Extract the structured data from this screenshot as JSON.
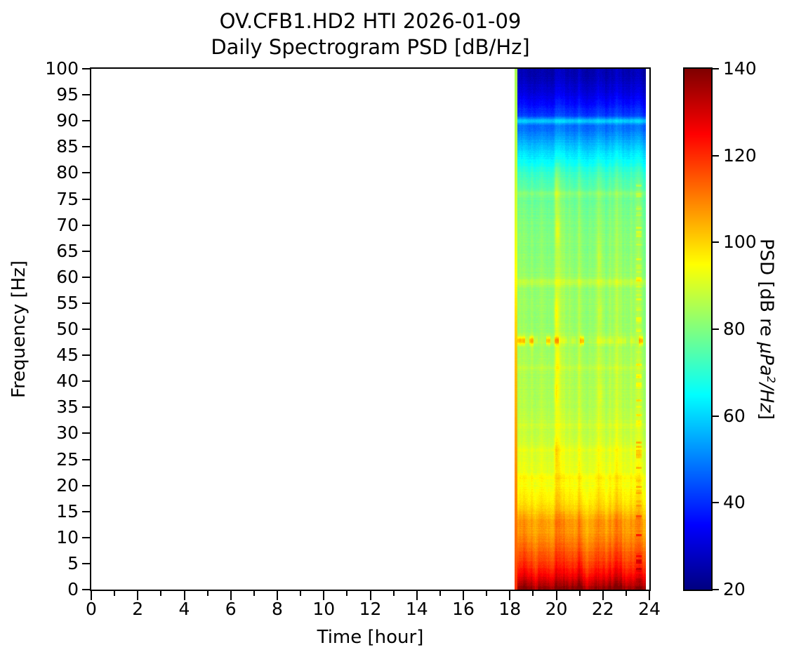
{
  "figure": {
    "title_line1": "OV.CFB1.HD2 HTI 2026-01-09",
    "title_line2": "Daily Spectrogram PSD [dB/Hz]"
  },
  "axes": {
    "xlabel": "Time [hour]",
    "ylabel": "Frequency [Hz]",
    "xlim": [
      0,
      24
    ],
    "ylim": [
      0,
      100
    ],
    "x_major_ticks": [
      0,
      2,
      4,
      6,
      8,
      10,
      12,
      14,
      16,
      18,
      20,
      22,
      24
    ],
    "x_minor_ticks": [
      1,
      3,
      5,
      7,
      9,
      11,
      13,
      15,
      17,
      19,
      21,
      23
    ],
    "y_major_ticks": [
      0,
      5,
      10,
      15,
      20,
      25,
      30,
      35,
      40,
      45,
      50,
      55,
      60,
      65,
      70,
      75,
      80,
      85,
      90,
      95,
      100
    ],
    "grid": false
  },
  "colorbar": {
    "label": "PSD [dB re μPa²/Hz]",
    "label_prefix": "PSD [dB re ",
    "label_unit_main": "μPa",
    "label_unit_sup": "2",
    "label_unit_rest": "/Hz",
    "label_close": "]",
    "ticks": [
      20,
      40,
      60,
      80,
      100,
      120,
      140
    ],
    "clim": [
      20,
      140
    ],
    "colormap": "jet"
  },
  "colors": {
    "text": "#000000",
    "spine": "#000000",
    "background": "#ffffff",
    "no_data": "#ffffff"
  },
  "chart_data": {
    "type": "heatmap",
    "subtype": "spectrogram",
    "title": "OV.CFB1.HD2 HTI 2026-01-09 Daily Spectrogram PSD [dB/Hz]",
    "xlabel": "Time [hour]",
    "ylabel": "Frequency [Hz]",
    "xlim": [
      0,
      24
    ],
    "ylim": [
      0,
      100
    ],
    "clim_db": [
      20,
      140
    ],
    "colormap": "jet",
    "coverage": {
      "start_hour": 18.2,
      "leading_column_end_hour": 18.33,
      "end_hour": 23.85
    },
    "base_profile": {
      "freq_hz": [
        0,
        1,
        2,
        3,
        4,
        5,
        6,
        8,
        10,
        12,
        14,
        16,
        18,
        20,
        23,
        26,
        30,
        35,
        40,
        45,
        50,
        55,
        60,
        65,
        70,
        73,
        76,
        78,
        80,
        82,
        84,
        86,
        88,
        90,
        92,
        94,
        96,
        98,
        100
      ],
      "psd_db": [
        138,
        133,
        128,
        124,
        121,
        118,
        116,
        112,
        108,
        105,
        102,
        99,
        96,
        94,
        92,
        90.5,
        88,
        86,
        85,
        84,
        83,
        82.5,
        82,
        81,
        80,
        78.5,
        76.5,
        74,
        71,
        66,
        61,
        55,
        49,
        44.5,
        39,
        34,
        30,
        27,
        25
      ]
    },
    "leading_column_profile": {
      "freq_hz": [
        0,
        8,
        15,
        25,
        35,
        45,
        52,
        60,
        70,
        80,
        90,
        100
      ],
      "psd_db": [
        120,
        113,
        110,
        107,
        104,
        102,
        99,
        95,
        91,
        88,
        86,
        85
      ]
    },
    "horizontal_lines": [
      {
        "freq_hz": 90.0,
        "sigma_hz": 0.45,
        "boost_db": 14,
        "intermittent": false
      },
      {
        "freq_hz": 76.0,
        "sigma_hz": 0.5,
        "boost_db": 4,
        "intermittent": false
      },
      {
        "freq_hz": 59.0,
        "sigma_hz": 0.55,
        "boost_db": 5,
        "intermittent": false
      },
      {
        "freq_hz": 47.8,
        "sigma_hz": 0.55,
        "boost_db": 6,
        "intermittent": true
      },
      {
        "freq_hz": 42.5,
        "sigma_hz": 0.4,
        "boost_db": 2.5,
        "intermittent": false
      },
      {
        "freq_hz": 31.5,
        "sigma_hz": 0.4,
        "boost_db": 2,
        "intermittent": false
      },
      {
        "freq_hz": 26.8,
        "sigma_hz": 0.4,
        "boost_db": 2,
        "intermittent": false
      },
      {
        "freq_hz": 21.5,
        "sigma_hz": 0.5,
        "boost_db": 2,
        "intermittent": false
      },
      {
        "freq_hz": 13.2,
        "sigma_hz": 1.1,
        "boost_db": 3,
        "intermittent": false
      }
    ],
    "events": [
      {
        "hour": 18.95,
        "sigma_hour": 0.05,
        "boost_db": 3,
        "speckle_db": 0
      },
      {
        "hour": 19.35,
        "sigma_hour": 0.04,
        "boost_db": 2,
        "speckle_db": 0
      },
      {
        "hour": 20.05,
        "sigma_hour": 0.09,
        "boost_db": 6,
        "speckle_db": 0
      },
      {
        "hour": 20.55,
        "sigma_hour": 0.04,
        "boost_db": 2,
        "speckle_db": 0
      },
      {
        "hour": 21.0,
        "sigma_hour": 0.05,
        "boost_db": 2.5,
        "speckle_db": 0
      },
      {
        "hour": 21.45,
        "sigma_hour": 0.05,
        "boost_db": 2,
        "speckle_db": 0
      },
      {
        "hour": 21.85,
        "sigma_hour": 0.07,
        "boost_db": 4,
        "speckle_db": 0
      },
      {
        "hour": 22.3,
        "sigma_hour": 0.04,
        "boost_db": 2,
        "speckle_db": 0
      },
      {
        "hour": 22.6,
        "sigma_hour": 0.06,
        "boost_db": 3,
        "speckle_db": 0
      },
      {
        "hour": 23.2,
        "sigma_hour": 0.04,
        "boost_db": 2,
        "speckle_db": 0
      },
      {
        "hour": 23.55,
        "sigma_hour": 0.08,
        "boost_db": 3,
        "speckle_db": 8
      }
    ],
    "blobs": [
      {
        "hour": 20.0,
        "freq_hz": 77.0,
        "sigma_hz": 3.0,
        "boost_db": 5
      },
      {
        "hour": 20.05,
        "freq_hz": 69.0,
        "sigma_hz": 2.0,
        "boost_db": 6
      },
      {
        "hour": 20.0,
        "freq_hz": 53.0,
        "sigma_hz": 2.5,
        "boost_db": 7
      },
      {
        "hour": 20.05,
        "freq_hz": 44.0,
        "sigma_hz": 2.0,
        "boost_db": 5
      },
      {
        "hour": 20.0,
        "freq_hz": 38.0,
        "sigma_hz": 2.0,
        "boost_db": 6
      },
      {
        "hour": 20.0,
        "freq_hz": 26.5,
        "sigma_hz": 2.0,
        "boost_db": 4
      },
      {
        "hour": 21.85,
        "freq_hz": 64.0,
        "sigma_hz": 2.0,
        "boost_db": 3
      },
      {
        "hour": 21.9,
        "freq_hz": 53.0,
        "sigma_hz": 1.5,
        "boost_db": 3
      },
      {
        "hour": 21.9,
        "freq_hz": 37.5,
        "sigma_hz": 1.5,
        "boost_db": 3
      },
      {
        "hour": 18.95,
        "freq_hz": 47.0,
        "sigma_hz": 1.5,
        "boost_db": 3
      }
    ],
    "noise": {
      "column_db": 1.8,
      "row_db": 1.5,
      "pixel_db": 2.2,
      "low_freq_streak_db": 3.2
    }
  }
}
